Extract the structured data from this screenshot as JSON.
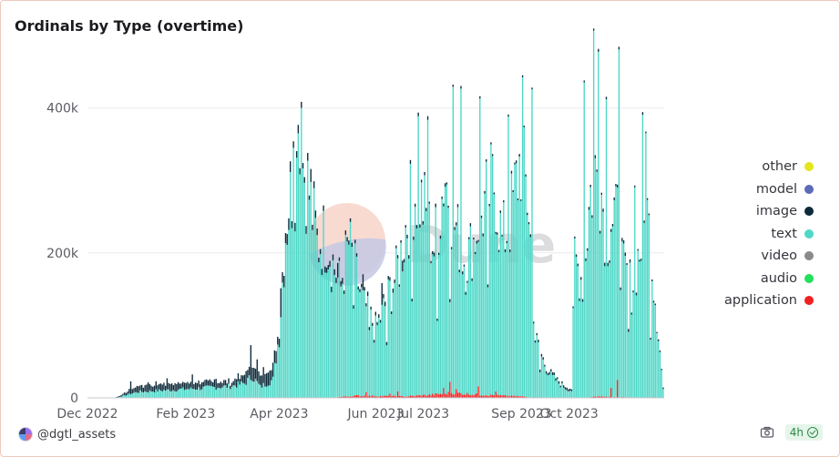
{
  "chart_data": {
    "type": "bar",
    "stacked": true,
    "title": "Ordinals by Type (overtime)",
    "x_range": [
      "2022-12-01",
      "2023-11-30"
    ],
    "x_ticks": [
      "Dec 2022",
      "Feb 2023",
      "Apr 2023",
      "Jun 2023",
      "Jul 2023",
      "Sep 2023",
      "Oct 2023"
    ],
    "x_tick_dates": [
      "2022-12-01",
      "2023-02-01",
      "2023-04-01",
      "2023-06-01",
      "2023-07-01",
      "2023-09-01",
      "2023-10-01"
    ],
    "y_ticks": [
      "0",
      "200k",
      "400k"
    ],
    "ylim": [
      0,
      510000
    ],
    "grid": true,
    "legend_position": "right",
    "series": [
      {
        "name": "other",
        "color": "#e5e51c"
      },
      {
        "name": "model",
        "color": "#5b6bb8"
      },
      {
        "name": "image",
        "color": "#0e2a3a"
      },
      {
        "name": "text",
        "color": "#4fd8c8"
      },
      {
        "name": "video",
        "color": "#8a8a8a"
      },
      {
        "name": "audio",
        "color": "#22e05a"
      },
      {
        "name": "application",
        "color": "#f0201e"
      }
    ],
    "text_key_points": [
      [
        "2022-12-01",
        0
      ],
      [
        "2022-12-18",
        0
      ],
      [
        "2022-12-22",
        2000
      ],
      [
        "2023-01-01",
        8000
      ],
      [
        "2023-01-15",
        10000
      ],
      [
        "2023-02-01",
        12000
      ],
      [
        "2023-02-15",
        14000
      ],
      [
        "2023-03-01",
        16000
      ],
      [
        "2023-03-10",
        20000
      ],
      [
        "2023-03-15",
        30000
      ],
      [
        "2023-03-20",
        15000
      ],
      [
        "2023-03-28",
        25000
      ],
      [
        "2023-04-01",
        90000
      ],
      [
        "2023-04-05",
        230000
      ],
      [
        "2023-04-10",
        300000
      ],
      [
        "2023-04-15",
        330000
      ],
      [
        "2023-04-20",
        280000
      ],
      [
        "2023-04-25",
        210000
      ],
      [
        "2023-05-01",
        220000
      ],
      [
        "2023-05-05",
        180000
      ],
      [
        "2023-05-10",
        150000
      ],
      [
        "2023-05-15",
        210000
      ],
      [
        "2023-05-20",
        160000
      ],
      [
        "2023-05-25",
        120000
      ],
      [
        "2023-06-01",
        90000
      ],
      [
        "2023-06-10",
        140000
      ],
      [
        "2023-06-15",
        170000
      ],
      [
        "2023-06-20",
        230000
      ],
      [
        "2023-06-25",
        280000
      ],
      [
        "2023-07-01",
        260000
      ],
      [
        "2023-07-08",
        200000
      ],
      [
        "2023-07-15",
        300000
      ],
      [
        "2023-07-22",
        220000
      ],
      [
        "2023-07-28",
        180000
      ],
      [
        "2023-08-05",
        230000
      ],
      [
        "2023-08-10",
        270000
      ],
      [
        "2023-08-15",
        290000
      ],
      [
        "2023-08-20",
        210000
      ],
      [
        "2023-08-25",
        240000
      ],
      [
        "2023-09-01",
        330000
      ],
      [
        "2023-09-06",
        260000
      ],
      [
        "2023-09-10",
        80000
      ],
      [
        "2023-09-15",
        50000
      ],
      [
        "2023-09-20",
        30000
      ],
      [
        "2023-09-25",
        20000
      ],
      [
        "2023-09-30",
        12000
      ],
      [
        "2023-10-03",
        10000
      ],
      [
        "2023-10-05",
        190000
      ],
      [
        "2023-10-10",
        160000
      ],
      [
        "2023-10-15",
        280000
      ],
      [
        "2023-10-20",
        320000
      ],
      [
        "2023-10-25",
        220000
      ],
      [
        "2023-10-30",
        250000
      ],
      [
        "2023-11-05",
        170000
      ],
      [
        "2023-11-10",
        150000
      ],
      [
        "2023-11-15",
        200000
      ],
      [
        "2023-11-20",
        250000
      ],
      [
        "2023-11-25",
        140000
      ],
      [
        "2023-11-30",
        12000
      ]
    ],
    "text_spikes": [
      [
        "2023-04-15",
        400000
      ],
      [
        "2023-04-13",
        365000
      ],
      [
        "2023-04-10",
        345000
      ],
      [
        "2023-06-28",
        385000
      ],
      [
        "2023-07-04",
        380000
      ],
      [
        "2023-07-20",
        425000
      ],
      [
        "2023-07-25",
        420000
      ],
      [
        "2023-08-06",
        410000
      ],
      [
        "2023-08-14",
        330000
      ],
      [
        "2023-08-24",
        385000
      ],
      [
        "2023-09-02",
        440000
      ],
      [
        "2023-09-08",
        425000
      ],
      [
        "2023-10-11",
        435000
      ],
      [
        "2023-10-17",
        505000
      ],
      [
        "2023-10-20",
        475000
      ],
      [
        "2023-10-25",
        410000
      ],
      [
        "2023-11-02",
        480000
      ],
      [
        "2023-11-12",
        290000
      ],
      [
        "2023-11-17",
        390000
      ],
      [
        "2023-11-19",
        365000
      ]
    ],
    "text_dips": [
      [
        "2023-05-18",
        120000
      ],
      [
        "2023-05-28",
        90000
      ],
      [
        "2023-06-08",
        70000
      ],
      [
        "2023-06-24",
        130000
      ],
      [
        "2023-07-10",
        100000
      ],
      [
        "2023-07-18",
        110000
      ],
      [
        "2023-08-11",
        150000
      ],
      [
        "2023-09-13",
        35000
      ],
      [
        "2023-11-08",
        90000
      ],
      [
        "2023-11-22",
        80000
      ]
    ],
    "image_key_points": [
      [
        "2022-12-01",
        0
      ],
      [
        "2022-12-18",
        0
      ],
      [
        "2022-12-22",
        2000
      ],
      [
        "2023-01-01",
        8000
      ],
      [
        "2023-01-15",
        10000
      ],
      [
        "2023-02-01",
        8000
      ],
      [
        "2023-02-15",
        9000
      ],
      [
        "2023-03-01",
        6000
      ],
      [
        "2023-03-15",
        18000
      ],
      [
        "2023-04-01",
        15000
      ],
      [
        "2023-04-15",
        9000
      ],
      [
        "2023-05-01",
        7000
      ],
      [
        "2023-06-01",
        5000
      ],
      [
        "2023-07-01",
        4000
      ],
      [
        "2023-08-01",
        3500
      ],
      [
        "2023-09-01",
        3000
      ],
      [
        "2023-10-01",
        3000
      ],
      [
        "2023-11-01",
        4000
      ],
      [
        "2023-11-30",
        2000
      ]
    ],
    "image_spikes": [
      [
        "2022-12-28",
        18000
      ],
      [
        "2023-01-08",
        14000
      ],
      [
        "2023-01-20",
        15000
      ],
      [
        "2023-02-05",
        20000
      ],
      [
        "2023-02-20",
        15000
      ],
      [
        "2023-03-14",
        48000
      ],
      [
        "2023-03-18",
        30000
      ],
      [
        "2023-03-22",
        22000
      ],
      [
        "2023-04-02",
        40000
      ],
      [
        "2023-04-21",
        18000
      ],
      [
        "2023-05-08",
        20000
      ],
      [
        "2023-05-24",
        22000
      ],
      [
        "2023-06-05",
        30000
      ],
      [
        "2023-06-18",
        15000
      ]
    ],
    "application_key_points": [
      [
        "2022-12-01",
        0
      ],
      [
        "2023-05-01",
        0
      ],
      [
        "2023-05-20",
        3000
      ],
      [
        "2023-06-20",
        2000
      ],
      [
        "2023-07-05",
        4000
      ],
      [
        "2023-07-20",
        7000
      ],
      [
        "2023-08-01",
        5000
      ],
      [
        "2023-08-20",
        3000
      ],
      [
        "2023-09-01",
        2000
      ],
      [
        "2023-09-15",
        0
      ],
      [
        "2023-10-10",
        0
      ],
      [
        "2023-10-20",
        2000
      ],
      [
        "2023-11-01",
        1000
      ],
      [
        "2023-11-30",
        0
      ]
    ],
    "application_spikes": [
      [
        "2023-05-26",
        8000
      ],
      [
        "2023-06-10",
        6000
      ],
      [
        "2023-06-15",
        9000
      ],
      [
        "2023-07-14",
        14000
      ],
      [
        "2023-07-18",
        22000
      ],
      [
        "2023-07-22",
        12000
      ],
      [
        "2023-08-05",
        16000
      ],
      [
        "2023-08-16",
        9000
      ],
      [
        "2023-10-28",
        14000
      ],
      [
        "2023-11-01",
        25000
      ]
    ]
  },
  "footer": {
    "author": "@dgtl_assets",
    "age": "4h"
  }
}
